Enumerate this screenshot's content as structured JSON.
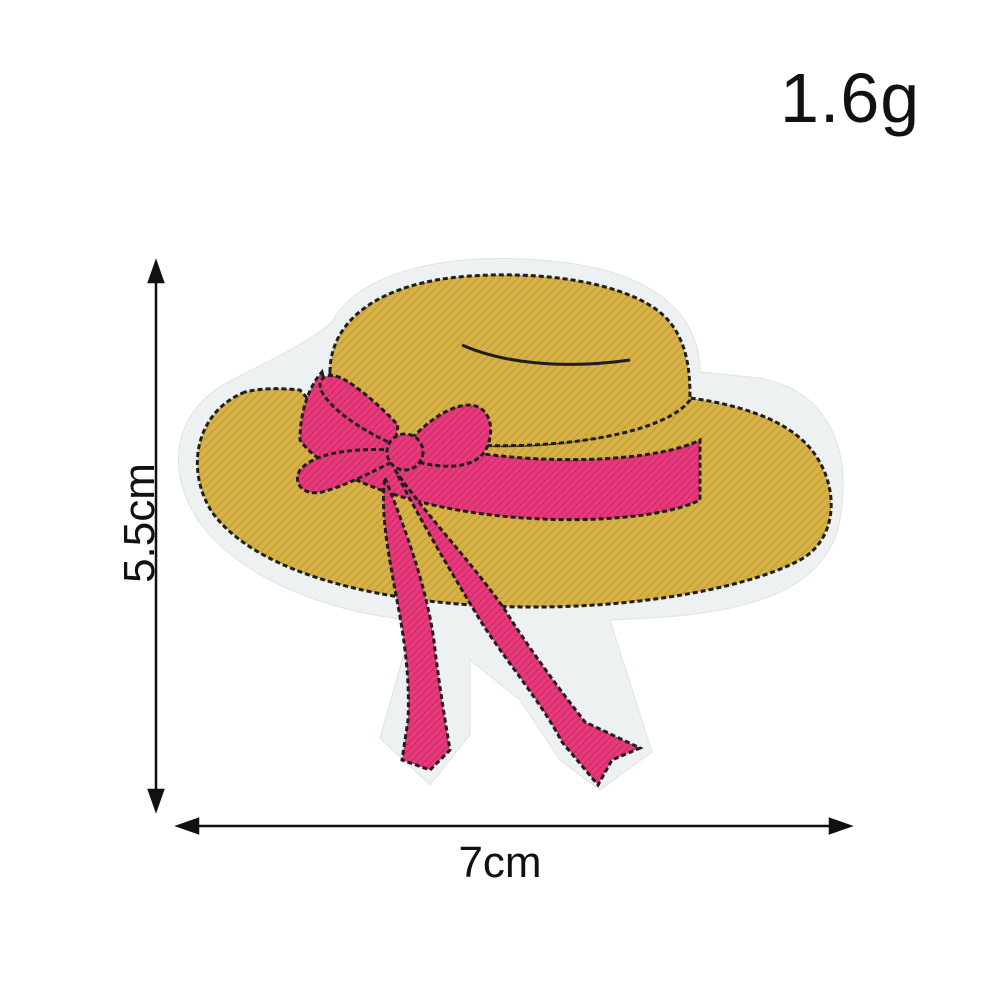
{
  "weight_label": "1.6g",
  "dimensions": {
    "width_label": "7cm",
    "height_label": "5.5cm"
  },
  "object": {
    "subject": "hat-patch-icon"
  },
  "colors": {
    "straw": "#d9b54a",
    "straw_shadow": "#c29b36",
    "ribbon": "#e6397a",
    "ribbon_dark": "#c72766",
    "felt_border": "#f2f4f4",
    "stitch": "#222222",
    "arrow": "#111111"
  }
}
